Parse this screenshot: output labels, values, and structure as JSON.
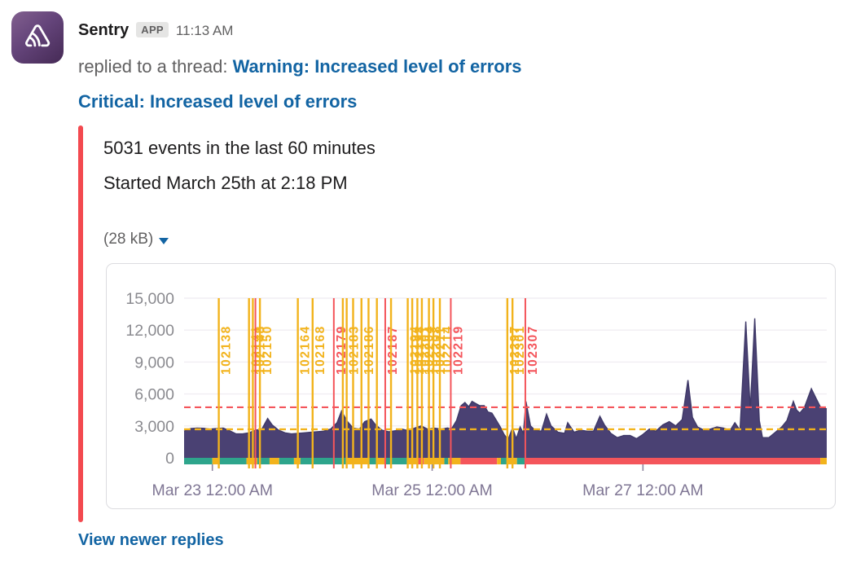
{
  "message": {
    "app_name": "Sentry",
    "app_badge": "APP",
    "timestamp": "11:13 AM",
    "reply_context_prefix": "replied to a thread: ",
    "thread_link": "Warning: Increased level of errors",
    "title_link": "Critical: Increased level of errors",
    "body_line1": "5031 events in the last 60 minutes",
    "body_line2": "Started March 25th at 2:18 PM",
    "attachment_size": "(28 kB)",
    "footer_link": "View newer replies"
  },
  "icons": {
    "app_avatar": "sentry-logo",
    "expand_caret": "caret-down"
  },
  "colors": {
    "link_blue": "#1264a3",
    "attachment_bar_red": "#f3494f",
    "text_primary": "#1d1c1d",
    "text_secondary": "#616061"
  },
  "chart_data": {
    "type": "area",
    "title": "",
    "xlabel": "",
    "ylabel": "",
    "ylim": [
      0,
      15000
    ],
    "y_ticks": [
      0,
      3000,
      6000,
      9000,
      12000,
      15000
    ],
    "x_ticks": [
      {
        "f": 0.044,
        "label": "Mar 23 12:00 AM"
      },
      {
        "f": 0.386,
        "label": "Mar 25 12:00 AM"
      },
      {
        "f": 0.714,
        "label": "Mar 27 12:00 AM"
      }
    ],
    "grid": true,
    "legend": false,
    "thresholds": {
      "warning": 2680,
      "critical": 4750
    },
    "colors": {
      "area": "#4a4173",
      "area_edge": "#3f3968",
      "warning": "#f2b31c",
      "critical": "#f4555b",
      "ok": "#2ea58c",
      "grid": "#f1eef3",
      "axis_text": "#8b8b90",
      "x_text": "#7f7694",
      "tick": "#8f87a0"
    },
    "series": [
      [
        0.0,
        2500
      ],
      [
        0.01,
        2750
      ],
      [
        0.02,
        2800
      ],
      [
        0.03,
        2780
      ],
      [
        0.04,
        2700
      ],
      [
        0.051,
        2760
      ],
      [
        0.061,
        2800
      ],
      [
        0.071,
        2550
      ],
      [
        0.081,
        2250
      ],
      [
        0.091,
        2250
      ],
      [
        0.101,
        2350
      ],
      [
        0.111,
        2600
      ],
      [
        0.121,
        2700
      ],
      [
        0.13,
        3700
      ],
      [
        0.137,
        3100
      ],
      [
        0.147,
        2600
      ],
      [
        0.157,
        2350
      ],
      [
        0.167,
        2250
      ],
      [
        0.177,
        2300
      ],
      [
        0.187,
        2350
      ],
      [
        0.197,
        2400
      ],
      [
        0.207,
        2450
      ],
      [
        0.217,
        2500
      ],
      [
        0.228,
        2700
      ],
      [
        0.238,
        3300
      ],
      [
        0.245,
        4400
      ],
      [
        0.253,
        3500
      ],
      [
        0.263,
        2800
      ],
      [
        0.273,
        2700
      ],
      [
        0.281,
        3400
      ],
      [
        0.291,
        3650
      ],
      [
        0.298,
        3100
      ],
      [
        0.308,
        2600
      ],
      [
        0.319,
        2450
      ],
      [
        0.329,
        2550
      ],
      [
        0.339,
        2700
      ],
      [
        0.349,
        2550
      ],
      [
        0.359,
        2800
      ],
      [
        0.369,
        3000
      ],
      [
        0.379,
        2700
      ],
      [
        0.389,
        2800
      ],
      [
        0.4,
        2700
      ],
      [
        0.41,
        2800
      ],
      [
        0.416,
        2700
      ],
      [
        0.424,
        3500
      ],
      [
        0.431,
        4900
      ],
      [
        0.437,
        5200
      ],
      [
        0.443,
        4800
      ],
      [
        0.448,
        5300
      ],
      [
        0.454,
        5100
      ],
      [
        0.46,
        4900
      ],
      [
        0.467,
        4900
      ],
      [
        0.473,
        4300
      ],
      [
        0.479,
        4200
      ],
      [
        0.486,
        3500
      ],
      [
        0.492,
        2900
      ],
      [
        0.498,
        2200
      ],
      [
        0.504,
        1700
      ],
      [
        0.511,
        2800
      ],
      [
        0.517,
        1800
      ],
      [
        0.523,
        2900
      ],
      [
        0.528,
        2300
      ],
      [
        0.532,
        5300
      ],
      [
        0.539,
        3000
      ],
      [
        0.546,
        2600
      ],
      [
        0.556,
        2500
      ],
      [
        0.564,
        4100
      ],
      [
        0.571,
        3000
      ],
      [
        0.582,
        2400
      ],
      [
        0.592,
        2300
      ],
      [
        0.597,
        3300
      ],
      [
        0.607,
        2400
      ],
      [
        0.617,
        2600
      ],
      [
        0.627,
        2500
      ],
      [
        0.637,
        2500
      ],
      [
        0.647,
        3900
      ],
      [
        0.654,
        3100
      ],
      [
        0.664,
        2300
      ],
      [
        0.674,
        1900
      ],
      [
        0.684,
        2100
      ],
      [
        0.694,
        2100
      ],
      [
        0.704,
        1800
      ],
      [
        0.714,
        2200
      ],
      [
        0.724,
        2700
      ],
      [
        0.734,
        2500
      ],
      [
        0.745,
        3100
      ],
      [
        0.755,
        3400
      ],
      [
        0.765,
        3000
      ],
      [
        0.775,
        3600
      ],
      [
        0.784,
        7300
      ],
      [
        0.791,
        3800
      ],
      [
        0.799,
        2900
      ],
      [
        0.809,
        2600
      ],
      [
        0.819,
        2700
      ],
      [
        0.829,
        2900
      ],
      [
        0.839,
        2800
      ],
      [
        0.85,
        2600
      ],
      [
        0.857,
        3300
      ],
      [
        0.865,
        2600
      ],
      [
        0.874,
        12800
      ],
      [
        0.881,
        4500
      ],
      [
        0.888,
        13100
      ],
      [
        0.895,
        3500
      ],
      [
        0.9,
        1900
      ],
      [
        0.91,
        1900
      ],
      [
        0.92,
        2400
      ],
      [
        0.93,
        2900
      ],
      [
        0.938,
        3500
      ],
      [
        0.948,
        5300
      ],
      [
        0.953,
        4500
      ],
      [
        0.958,
        4200
      ],
      [
        0.965,
        4700
      ],
      [
        0.976,
        6500
      ],
      [
        0.984,
        5500
      ],
      [
        0.99,
        4800
      ],
      [
        1.0,
        4600
      ]
    ],
    "event_lines": [
      {
        "f": 0.054,
        "label": "102138",
        "level": "warning"
      },
      {
        "f": 0.101,
        "label": "102141",
        "level": "warning"
      },
      {
        "f": 0.107,
        "label": "102148",
        "level": "warning"
      },
      {
        "f": 0.111,
        "label": "",
        "level": "critical"
      },
      {
        "f": 0.118,
        "label": "102150",
        "level": "warning"
      },
      {
        "f": 0.177,
        "label": "102164",
        "level": "warning"
      },
      {
        "f": 0.2,
        "label": "102168",
        "level": "warning"
      },
      {
        "f": 0.233,
        "label": "102179",
        "level": "critical"
      },
      {
        "f": 0.247,
        "label": "",
        "level": "warning"
      },
      {
        "f": 0.253,
        "label": "102183",
        "level": "warning"
      },
      {
        "f": 0.263,
        "label": "",
        "level": "warning"
      },
      {
        "f": 0.276,
        "label": "102186",
        "level": "warning"
      },
      {
        "f": 0.287,
        "label": "",
        "level": "warning"
      },
      {
        "f": 0.3,
        "label": "",
        "level": "warning"
      },
      {
        "f": 0.313,
        "label": "102187",
        "level": "critical"
      },
      {
        "f": 0.322,
        "label": "",
        "level": "warning"
      },
      {
        "f": 0.348,
        "label": "102194",
        "level": "warning"
      },
      {
        "f": 0.355,
        "label": "102198",
        "level": "warning"
      },
      {
        "f": 0.363,
        "label": "102201",
        "level": "warning"
      },
      {
        "f": 0.37,
        "label": "102204",
        "level": "warning"
      },
      {
        "f": 0.381,
        "label": "102208",
        "level": "warning"
      },
      {
        "f": 0.388,
        "label": "102211",
        "level": "warning"
      },
      {
        "f": 0.398,
        "label": "102214",
        "level": "warning"
      },
      {
        "f": 0.415,
        "label": "102219",
        "level": "critical"
      },
      {
        "f": 0.503,
        "label": "102297",
        "level": "warning"
      },
      {
        "f": 0.511,
        "label": "102301",
        "level": "warning"
      },
      {
        "f": 0.531,
        "label": "102307",
        "level": "critical"
      }
    ],
    "status_strip": [
      {
        "f0": 0.0,
        "f1": 0.044,
        "status": "ok"
      },
      {
        "f0": 0.044,
        "f1": 0.054,
        "status": "warning"
      },
      {
        "f0": 0.054,
        "f1": 0.097,
        "status": "ok"
      },
      {
        "f0": 0.097,
        "f1": 0.114,
        "status": "warning"
      },
      {
        "f0": 0.114,
        "f1": 0.133,
        "status": "ok"
      },
      {
        "f0": 0.133,
        "f1": 0.148,
        "status": "warning"
      },
      {
        "f0": 0.148,
        "f1": 0.171,
        "status": "ok"
      },
      {
        "f0": 0.171,
        "f1": 0.181,
        "status": "warning"
      },
      {
        "f0": 0.181,
        "f1": 0.253,
        "status": "ok"
      },
      {
        "f0": 0.253,
        "f1": 0.287,
        "status": "warning"
      },
      {
        "f0": 0.287,
        "f1": 0.3,
        "status": "ok"
      },
      {
        "f0": 0.3,
        "f1": 0.312,
        "status": "warning"
      },
      {
        "f0": 0.312,
        "f1": 0.348,
        "status": "ok"
      },
      {
        "f0": 0.348,
        "f1": 0.363,
        "status": "warning"
      },
      {
        "f0": 0.363,
        "f1": 0.373,
        "status": "critical"
      },
      {
        "f0": 0.373,
        "f1": 0.405,
        "status": "warning"
      },
      {
        "f0": 0.405,
        "f1": 0.411,
        "status": "ok"
      },
      {
        "f0": 0.411,
        "f1": 0.43,
        "status": "warning"
      },
      {
        "f0": 0.43,
        "f1": 0.487,
        "status": "critical"
      },
      {
        "f0": 0.487,
        "f1": 0.493,
        "status": "warning"
      },
      {
        "f0": 0.493,
        "f1": 0.503,
        "status": "ok"
      },
      {
        "f0": 0.503,
        "f1": 0.518,
        "status": "warning"
      },
      {
        "f0": 0.518,
        "f1": 0.531,
        "status": "ok"
      },
      {
        "f0": 0.531,
        "f1": 0.99,
        "status": "critical"
      },
      {
        "f0": 0.99,
        "f1": 1.0,
        "status": "warning"
      }
    ]
  }
}
